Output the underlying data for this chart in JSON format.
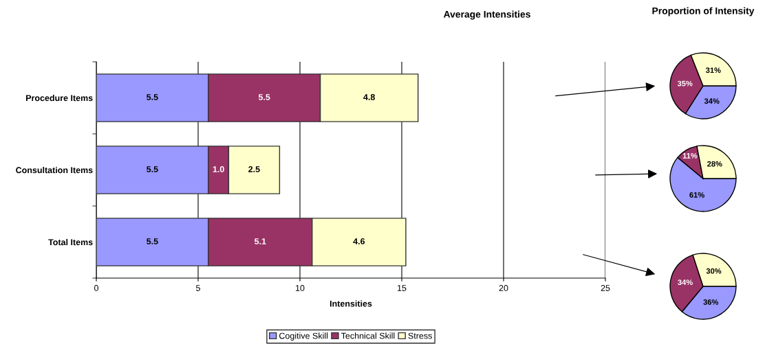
{
  "chart_data": [
    {
      "type": "bar",
      "orientation": "horizontal",
      "stacked": true,
      "title": "Average Intensities",
      "xlabel": "Intensities",
      "categories": [
        "Procedure Items",
        "Consultation Items",
        "Total Items"
      ],
      "series": [
        {
          "name": "Cogitive Skill",
          "color": "#9999ff",
          "values": [
            5.5,
            5.5,
            5.5
          ]
        },
        {
          "name": "Technical Skill",
          "color": "#993366",
          "values": [
            5.5,
            1.0,
            5.1
          ]
        },
        {
          "name": "Stress",
          "color": "#ffffcc",
          "values": [
            4.8,
            2.5,
            4.6
          ]
        }
      ],
      "xlim": [
        0,
        25
      ],
      "xticks": [
        0,
        5,
        10,
        15,
        20,
        25
      ],
      "grid": "x",
      "legend": "bottom",
      "value_labels": [
        [
          "5.5",
          "5.5",
          "5.5"
        ],
        [
          "5.5",
          "1.0",
          "5.1"
        ],
        [
          "4.8",
          "2.5",
          "4.6"
        ]
      ]
    },
    {
      "type": "pie",
      "title": "Proportion of Intensity",
      "categories": [
        null,
        null,
        null
      ],
      "values": [
        34,
        35,
        31
      ],
      "colors": [
        "#9999ff",
        "#993366",
        "#ffffcc"
      ],
      "value_labels": [
        "34%",
        "35%",
        "31%"
      ]
    },
    {
      "type": "pie",
      "categories": [
        null,
        null,
        null
      ],
      "values": [
        61,
        11,
        28
      ],
      "colors": [
        "#9999ff",
        "#993366",
        "#ffffcc"
      ],
      "value_labels": [
        "61%",
        "11%",
        "28%"
      ]
    },
    {
      "type": "pie",
      "categories": [
        null,
        null,
        null
      ],
      "values": [
        36,
        34,
        30
      ],
      "colors": [
        "#9999ff",
        "#993366",
        "#ffffcc"
      ],
      "value_labels": [
        "36%",
        "34%",
        "30%"
      ]
    }
  ]
}
